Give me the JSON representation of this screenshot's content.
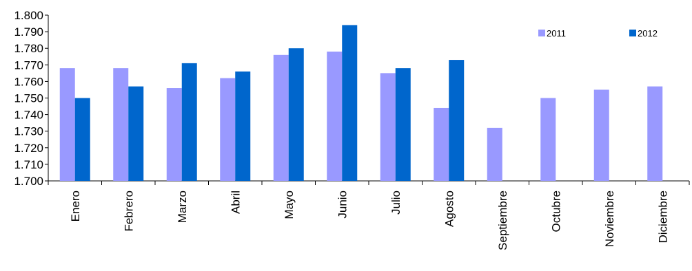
{
  "chart_data": {
    "type": "bar",
    "categories": [
      "Enero",
      "Febrero",
      "Marzo",
      "Abril",
      "Mayo",
      "Junio",
      "Julio",
      "Agosto",
      "Septiembre",
      "Octubre",
      "Noviembre",
      "Diciembre"
    ],
    "series": [
      {
        "name": "2011",
        "color": "#9999ff",
        "values": [
          1.768,
          1.768,
          1.756,
          1.762,
          1.776,
          1.778,
          1.765,
          1.744,
          1.732,
          1.75,
          1.755,
          1.757
        ]
      },
      {
        "name": "2012",
        "color": "#0066cc",
        "values": [
          1.75,
          1.757,
          1.771,
          1.766,
          1.78,
          1.794,
          1.768,
          1.773,
          null,
          null,
          null,
          null
        ]
      }
    ],
    "ylim": [
      1.7,
      1.8
    ],
    "yticks": [
      "1.700",
      "1.710",
      "1.720",
      "1.730",
      "1.740",
      "1.750",
      "1.760",
      "1.770",
      "1.780",
      "1.790",
      "1.800"
    ],
    "grid": false,
    "legend_position": "top-right"
  }
}
